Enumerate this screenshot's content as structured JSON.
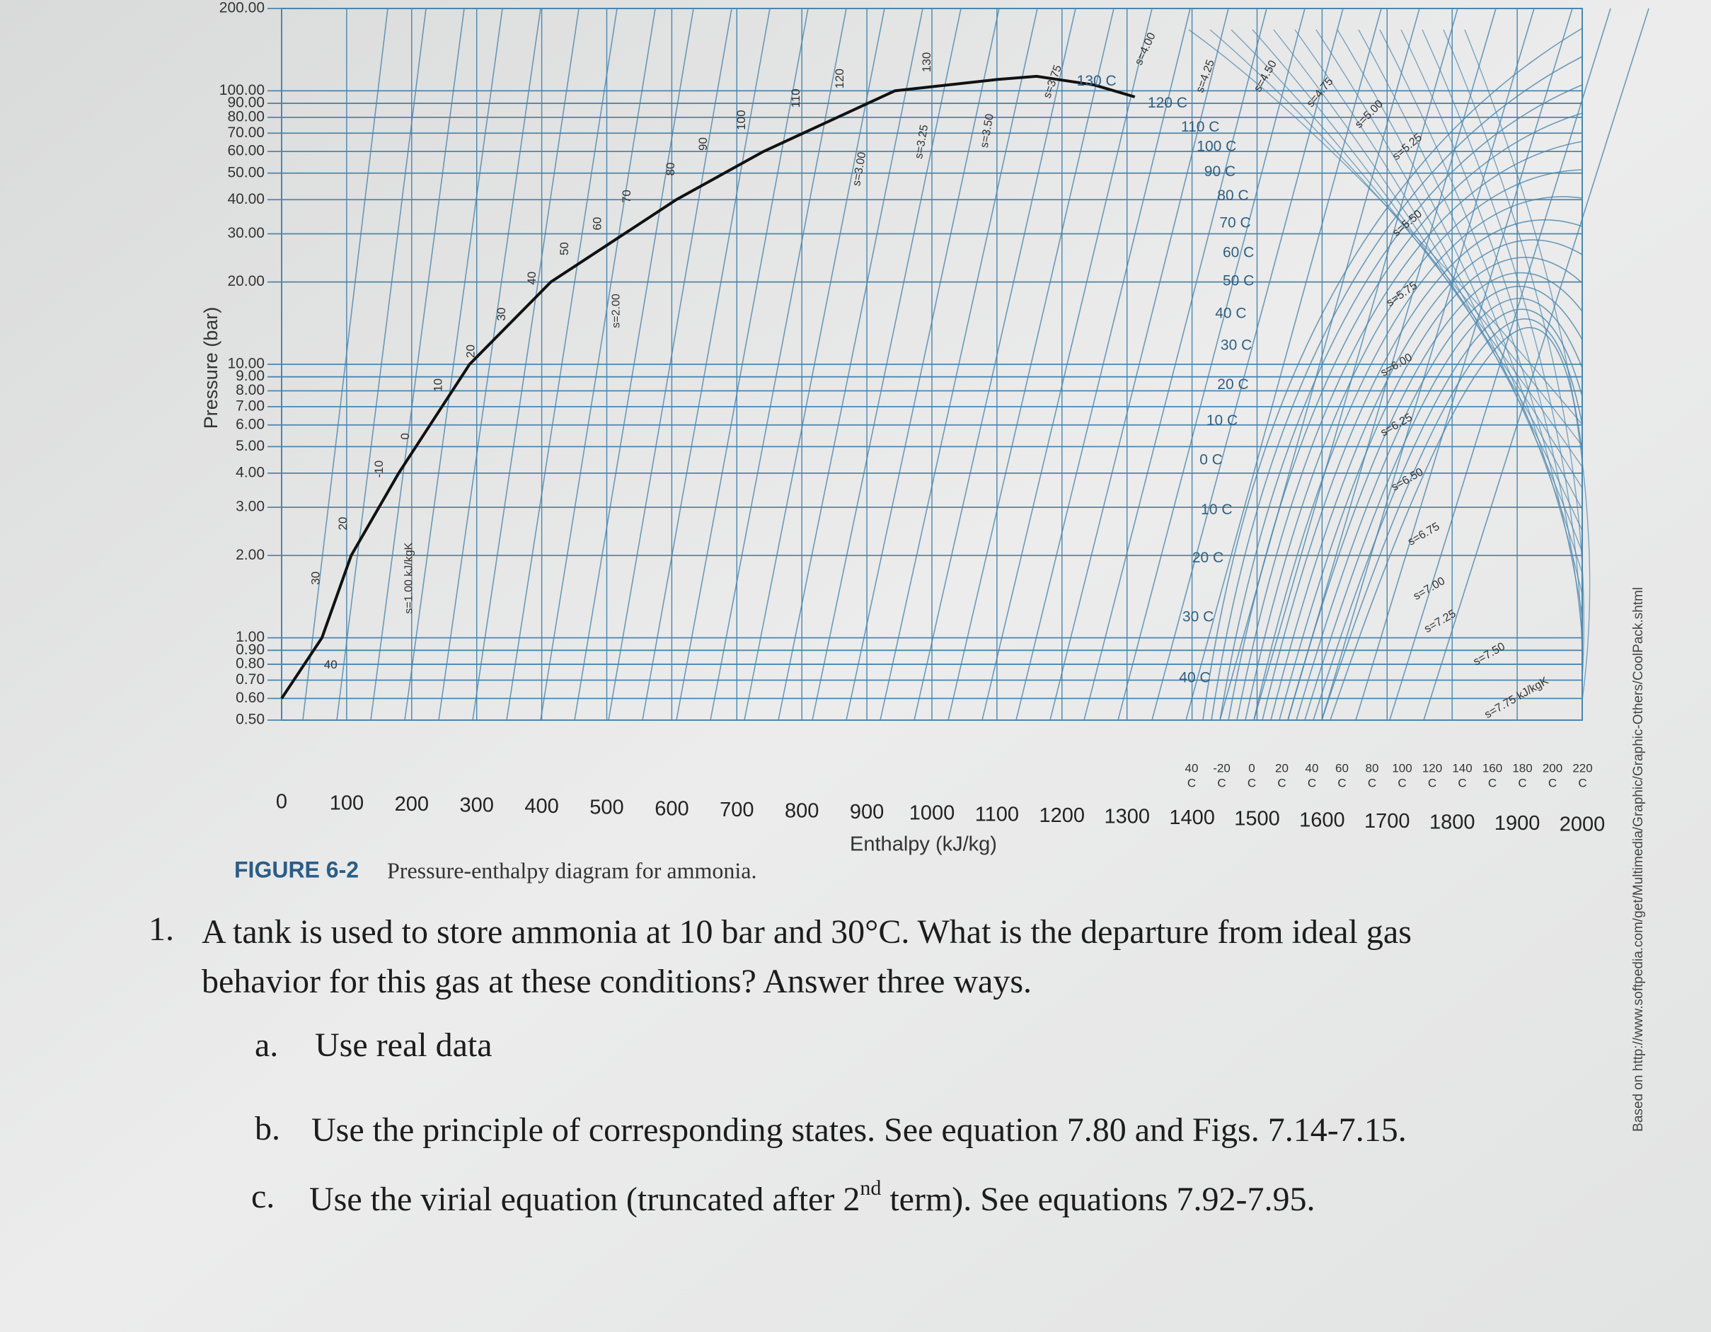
{
  "chart_data": {
    "type": "line",
    "log_y": true,
    "grid": true,
    "color": "#4a86ad",
    "line_color": "#111111",
    "ylabel": "Pressure (bar)",
    "xlabel": "Enthalpy (kJ/kg)",
    "xlim": [
      0,
      2000
    ],
    "xticks": [
      0,
      100,
      200,
      300,
      400,
      500,
      600,
      700,
      800,
      900,
      1000,
      1100,
      1200,
      1300,
      1400,
      1500,
      1600,
      1700,
      1800,
      1900,
      2000
    ],
    "ylim": [
      0.5,
      200
    ],
    "yticks": [
      {
        "value": 200,
        "label": "200.00"
      },
      {
        "value": 100,
        "label": "100.00"
      },
      {
        "value": 90,
        "label": "90.00"
      },
      {
        "value": 80,
        "label": "80.00"
      },
      {
        "value": 70,
        "label": "70.00"
      },
      {
        "value": 60,
        "label": "60.00"
      },
      {
        "value": 50,
        "label": "50.00"
      },
      {
        "value": 40,
        "label": "40.00"
      },
      {
        "value": 30,
        "label": "30.00"
      },
      {
        "value": 20,
        "label": "20.00"
      },
      {
        "value": 10,
        "label": "10.00"
      },
      {
        "value": 9,
        "label": "9.00"
      },
      {
        "value": 8,
        "label": "8.00"
      },
      {
        "value": 7,
        "label": "7.00"
      },
      {
        "value": 6,
        "label": "6.00"
      },
      {
        "value": 5,
        "label": "5.00"
      },
      {
        "value": 4,
        "label": "4.00"
      },
      {
        "value": 3,
        "label": "3.00"
      },
      {
        "value": 2,
        "label": "2.00"
      },
      {
        "value": 1,
        "label": "1.00"
      },
      {
        "value": 0.9,
        "label": "0.90"
      },
      {
        "value": 0.8,
        "label": "0.80"
      },
      {
        "value": 0.7,
        "label": "0.70"
      },
      {
        "value": 0.6,
        "label": "0.60"
      },
      {
        "value": 0.5,
        "label": "0.50"
      }
    ],
    "x": [
      0,
      62,
      107,
      180,
      289,
      414,
      607,
      741,
      943,
      1100,
      1161,
      1250,
      1312
    ],
    "values": [
      0.6,
      1,
      2,
      4,
      10,
      20,
      40,
      60,
      100,
      110,
      113,
      105,
      95
    ],
    "isotherm_labels": [
      "130 C",
      "120 C",
      "110 C",
      "100 C",
      "90 C",
      "80 C",
      "70 C",
      "60 C",
      "50 C",
      "40 C",
      "30 C",
      "20 C",
      "10 C",
      "0 C",
      "10 C",
      "20 C",
      "30 C",
      "40 C"
    ],
    "liquid_labels": [
      "30",
      "20",
      "-10",
      "0",
      "10",
      "20",
      "30",
      "40",
      "50",
      "60",
      "70",
      "80",
      "90",
      "100",
      "110",
      "120",
      "130",
      "40"
    ],
    "entropy_labels": [
      "s=1.00 kJ/kgK",
      "s=2.00",
      "s=3.00",
      "s=3.25",
      "s=3.50",
      "s=3.75",
      "s=4.00",
      "s=4.25",
      "s=4.50",
      "s=4.75",
      "s=5.00",
      "s=5.25",
      "s=5.50",
      "s=5.75",
      "s=6.00",
      "s=6.25",
      "s=6.50",
      "s=6.75",
      "s=7.00",
      "s=7.25",
      "s=7.50",
      "s=7.75 kJ/kgK"
    ],
    "temperature_scale": [
      "40",
      "-20",
      "0",
      "20",
      "40",
      "60",
      "80",
      "100",
      "120",
      "140",
      "160",
      "180",
      "200",
      "220"
    ],
    "temperature_unit": "C"
  },
  "figure": {
    "label": "FIGURE 6-2",
    "caption": "Pressure-enthalpy diagram for ammonia.",
    "credit": "Based on http://www.softpedia.com/get/Multimedia/Graphic/Graphic-Others/CoolPack.shtml"
  },
  "question": {
    "number": "1.",
    "text_line1": "A tank is used to store ammonia at 10 bar and 30°C.  What is the departure from ideal gas",
    "text_line2": "behavior for this gas at these conditions?  Answer three ways.",
    "parts": [
      {
        "letter": "a.",
        "text": "Use real data"
      },
      {
        "letter": "b.",
        "text": "Use the principle of corresponding states.  See equation 7.80 and Figs. 7.14-7.15."
      },
      {
        "letter": "c.",
        "text": "Use the virial equation (truncated after 2",
        "sup": "nd",
        "text_after": " term).  See equations 7.92-7.95."
      }
    ]
  }
}
